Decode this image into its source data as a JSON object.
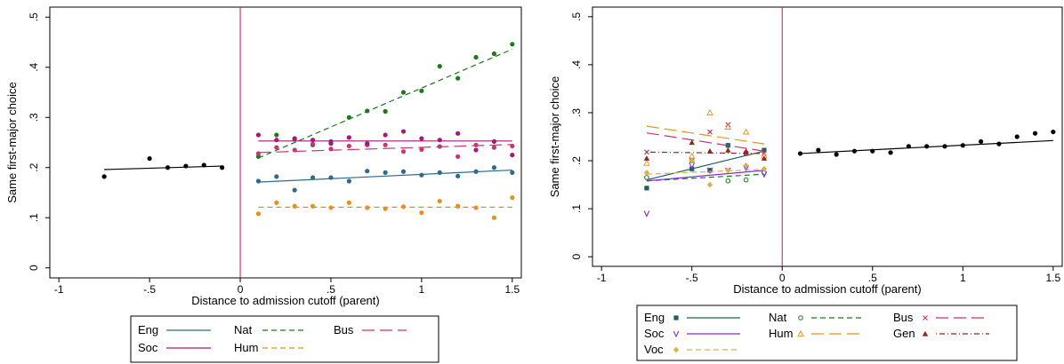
{
  "chart_data": [
    {
      "type": "scatter",
      "title": "",
      "xlabel": "Distance to admission cutoff (parent)",
      "ylabel": "Same first-major choice",
      "xlim": [
        -1.05,
        1.55
      ],
      "ylim": [
        -0.02,
        0.52
      ],
      "xticks": [
        -1,
        -0.5,
        0,
        0.5,
        1,
        1.5
      ],
      "xtick_labels": [
        "-1",
        "-.5",
        "0",
        ".5",
        "1",
        "1.5"
      ],
      "yticks": [
        0,
        0.1,
        0.2,
        0.3,
        0.4,
        0.5
      ],
      "ytick_labels": [
        "0",
        ".1",
        ".2",
        ".3",
        ".4",
        ".5"
      ],
      "cutoff_line_x": 0,
      "grid": false,
      "legend_position": "bottom",
      "legend_rows": [
        [
          "Eng",
          "Nat",
          "Bus"
        ],
        [
          "Soc",
          "Hum"
        ]
      ],
      "series": [
        {
          "name": "",
          "color": "#000000",
          "dash": "",
          "x": [
            -0.75,
            -0.5,
            -0.4,
            -0.3,
            -0.2,
            -0.1
          ],
          "y": [
            0.182,
            0.218,
            0.2,
            0.203,
            0.205,
            0.2
          ],
          "fit": [
            [
              -0.75,
              0.196
            ],
            [
              -0.1,
              0.203
            ]
          ]
        },
        {
          "name": "Eng",
          "color": "#2d6a8f",
          "dash": "",
          "x": [
            0.1,
            0.2,
            0.3,
            0.4,
            0.5,
            0.6,
            0.7,
            0.8,
            0.9,
            1.0,
            1.1,
            1.2,
            1.3,
            1.4,
            1.5
          ],
          "y": [
            0.173,
            0.182,
            0.155,
            0.18,
            0.18,
            0.173,
            0.193,
            0.19,
            0.192,
            0.185,
            0.19,
            0.183,
            0.192,
            0.2,
            0.19
          ],
          "fit": [
            [
              0.1,
              0.171
            ],
            [
              1.5,
              0.195
            ]
          ]
        },
        {
          "name": "Nat",
          "color": "#1b7a1b",
          "dash": "6,4",
          "x": [
            0.1,
            0.2,
            0.3,
            0.4,
            0.5,
            0.6,
            0.7,
            0.8,
            0.9,
            1.0,
            1.1,
            1.2,
            1.3,
            1.4,
            1.5
          ],
          "y": [
            0.222,
            0.265,
            0.257,
            0.245,
            0.252,
            0.3,
            0.313,
            0.312,
            0.35,
            0.353,
            0.402,
            0.378,
            0.42,
            0.427,
            0.446
          ],
          "fit": [
            [
              0.1,
              0.219
            ],
            [
              1.5,
              0.436
            ]
          ]
        },
        {
          "name": "Bus",
          "color": "#c8366d",
          "dash": "14,6",
          "x": [
            0.1,
            0.2,
            0.3,
            0.4,
            0.5,
            0.6,
            0.7,
            0.8,
            0.9,
            1.0,
            1.1,
            1.2,
            1.3,
            1.4,
            1.5
          ],
          "y": [
            0.228,
            0.24,
            0.235,
            0.247,
            0.237,
            0.243,
            0.245,
            0.245,
            0.232,
            0.236,
            0.242,
            0.222,
            0.245,
            0.24,
            0.243
          ],
          "fit": [
            [
              0.1,
              0.23
            ],
            [
              1.5,
              0.246
            ]
          ]
        },
        {
          "name": "Soc",
          "color": "#a3197d",
          "dash": "",
          "x": [
            0.1,
            0.2,
            0.3,
            0.4,
            0.5,
            0.6,
            0.7,
            0.8,
            0.9,
            1.0,
            1.1,
            1.2,
            1.3,
            1.4,
            1.5
          ],
          "y": [
            0.265,
            0.255,
            0.258,
            0.255,
            0.248,
            0.26,
            0.248,
            0.265,
            0.272,
            0.258,
            0.255,
            0.268,
            0.235,
            0.252,
            0.225
          ],
          "fit": [
            [
              0.1,
              0.253
            ],
            [
              1.5,
              0.253
            ]
          ]
        },
        {
          "name": "Hum",
          "color": "#e8901c",
          "dash": "6,4",
          "x": [
            0.1,
            0.2,
            0.3,
            0.4,
            0.5,
            0.6,
            0.7,
            0.8,
            0.9,
            1.0,
            1.1,
            1.2,
            1.3,
            1.4,
            1.5
          ],
          "y": [
            0.108,
            0.13,
            0.123,
            0.123,
            0.12,
            0.13,
            0.12,
            0.118,
            0.122,
            0.11,
            0.133,
            0.123,
            0.12,
            0.1,
            0.14
          ],
          "fit": [
            [
              0.1,
              0.121
            ],
            [
              1.5,
              0.121
            ]
          ]
        }
      ]
    },
    {
      "type": "scatter",
      "title": "",
      "xlabel": "Distance to admission cutoff (parent)",
      "ylabel": "Same first-major choice",
      "xlim": [
        -1.05,
        1.55
      ],
      "ylim": [
        -0.02,
        0.52
      ],
      "xticks": [
        -1,
        -0.5,
        0,
        0.5,
        1,
        1.5
      ],
      "xtick_labels": [
        "-1",
        "-.5",
        "0",
        ".5",
        "1",
        "1.5"
      ],
      "yticks": [
        0,
        0.1,
        0.2,
        0.3,
        0.4,
        0.5
      ],
      "ytick_labels": [
        "0",
        ".1",
        ".2",
        ".3",
        ".4",
        ".5"
      ],
      "cutoff_line_x": 0,
      "grid": false,
      "legend_position": "bottom",
      "legend_rows": [
        [
          "Eng",
          "Nat",
          "Bus"
        ],
        [
          "Soc",
          "Hum",
          "Gen"
        ],
        [
          "Voc"
        ]
      ],
      "series": [
        {
          "name": "",
          "color": "#000000",
          "dash": "",
          "marker": "circle",
          "x": [
            0.1,
            0.2,
            0.3,
            0.4,
            0.5,
            0.6,
            0.7,
            0.8,
            0.9,
            1.0,
            1.1,
            1.2,
            1.3,
            1.4,
            1.5
          ],
          "y": [
            0.215,
            0.222,
            0.213,
            0.22,
            0.22,
            0.217,
            0.23,
            0.23,
            0.23,
            0.232,
            0.24,
            0.235,
            0.25,
            0.257,
            0.26
          ],
          "fit": [
            [
              0.1,
              0.215
            ],
            [
              1.5,
              0.242
            ]
          ]
        },
        {
          "name": "Eng",
          "color": "#1f5f5f",
          "dash": "",
          "marker": "square",
          "x": [
            -0.75,
            -0.5,
            -0.4,
            -0.3,
            -0.2,
            -0.1
          ],
          "y": [
            0.143,
            0.183,
            0.18,
            0.232,
            0.215,
            0.222
          ],
          "fit": [
            [
              -0.75,
              0.16
            ],
            [
              -0.1,
              0.22
            ]
          ]
        },
        {
          "name": "Nat",
          "color": "#1b7a1b",
          "dash": "6,4",
          "marker": "ocircle",
          "x": [
            -0.75,
            -0.5,
            -0.4,
            -0.3,
            -0.2,
            -0.1
          ],
          "y": [
            0.165,
            0.2,
            0.18,
            0.158,
            0.16,
            0.175
          ],
          "fit": [
            [
              -0.75,
              0.158
            ],
            [
              -0.1,
              0.172
            ]
          ]
        },
        {
          "name": "Bus",
          "color": "#c8366d",
          "dash": "14,6",
          "marker": "x",
          "x": [
            -0.75,
            -0.5,
            -0.4,
            -0.3,
            -0.2,
            -0.1
          ],
          "y": [
            0.218,
            0.2,
            0.26,
            0.275,
            0.215,
            0.215
          ],
          "fit": [
            [
              -0.75,
              0.258
            ],
            [
              -0.1,
              0.22
            ]
          ]
        },
        {
          "name": "Soc",
          "color": "#8a2be2",
          "dash": "",
          "marker": "v",
          "x": [
            -0.75,
            -0.5,
            -0.4,
            -0.3,
            -0.2,
            -0.1
          ],
          "y": [
            0.09,
            0.19,
            0.18,
            0.18,
            0.185,
            0.172
          ],
          "fit": [
            [
              -0.75,
              0.158
            ],
            [
              -0.1,
              0.18
            ]
          ]
        },
        {
          "name": "Hum",
          "color": "#e8901c",
          "dash": "14,6",
          "marker": "tri-open",
          "x": [
            -0.75,
            -0.5,
            -0.4,
            -0.3,
            -0.2,
            -0.1
          ],
          "y": [
            0.195,
            0.21,
            0.3,
            0.27,
            0.26,
            0.21
          ],
          "fit": [
            [
              -0.75,
              0.272
            ],
            [
              -0.1,
              0.235
            ]
          ]
        },
        {
          "name": "Gen",
          "color": "#8b2a1a",
          "dash": "1,3,6,3",
          "marker": "tri",
          "x": [
            -0.75,
            -0.5,
            -0.4,
            -0.3,
            -0.2,
            -0.1
          ],
          "y": [
            0.205,
            0.238,
            0.22,
            0.222,
            0.22,
            0.205
          ],
          "fit": [
            [
              -0.75,
              0.218
            ],
            [
              -0.1,
              0.215
            ]
          ]
        },
        {
          "name": "Voc",
          "color": "#d4b54a",
          "dash": "6,4",
          "marker": "diamond",
          "x": [
            -0.75,
            -0.5,
            -0.4,
            -0.3,
            -0.2,
            -0.1
          ],
          "y": [
            0.175,
            0.2,
            0.15,
            0.18,
            0.19,
            0.183
          ],
          "fit": [
            [
              -0.75,
              0.172
            ],
            [
              -0.1,
              0.182
            ]
          ]
        }
      ]
    }
  ]
}
